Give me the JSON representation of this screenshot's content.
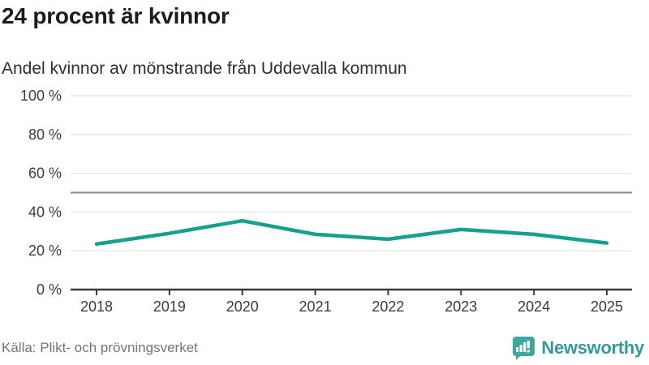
{
  "header": {
    "title": "24 procent är kvinnor",
    "subtitle": "Andel kvinnor av mönstrande från Uddevalla kommun"
  },
  "chart_data": {
    "type": "line",
    "title": "24 procent är kvinnor",
    "subtitle": "Andel kvinnor av mönstrande från Uddevalla kommun",
    "x": [
      "2018",
      "2019",
      "2020",
      "2021",
      "2022",
      "2023",
      "2024",
      "2025"
    ],
    "series": [
      {
        "name": "Andel kvinnor av mönstrande",
        "values": [
          23.5,
          29,
          35.5,
          28.5,
          26,
          31,
          28.5,
          24
        ]
      }
    ],
    "unit": "%",
    "ylim": [
      0,
      100
    ],
    "yticks": [
      0,
      20,
      40,
      60,
      80,
      100
    ],
    "ytick_suffix": " %",
    "reference_line_y": 50,
    "grid": true,
    "legend": "none",
    "line_color": "#16a08f",
    "reference_line_color": "#898989",
    "axis_color": "#3a3a3a",
    "tick_label_color": "#3c3c3c",
    "grid_color": "#e4e4e4"
  },
  "footer": {
    "source": "Källa: Plikt- och prövningsverket",
    "brand_name": "Newsworthy",
    "brand_color": "#35989b",
    "logo_color": "#3ba79d"
  }
}
